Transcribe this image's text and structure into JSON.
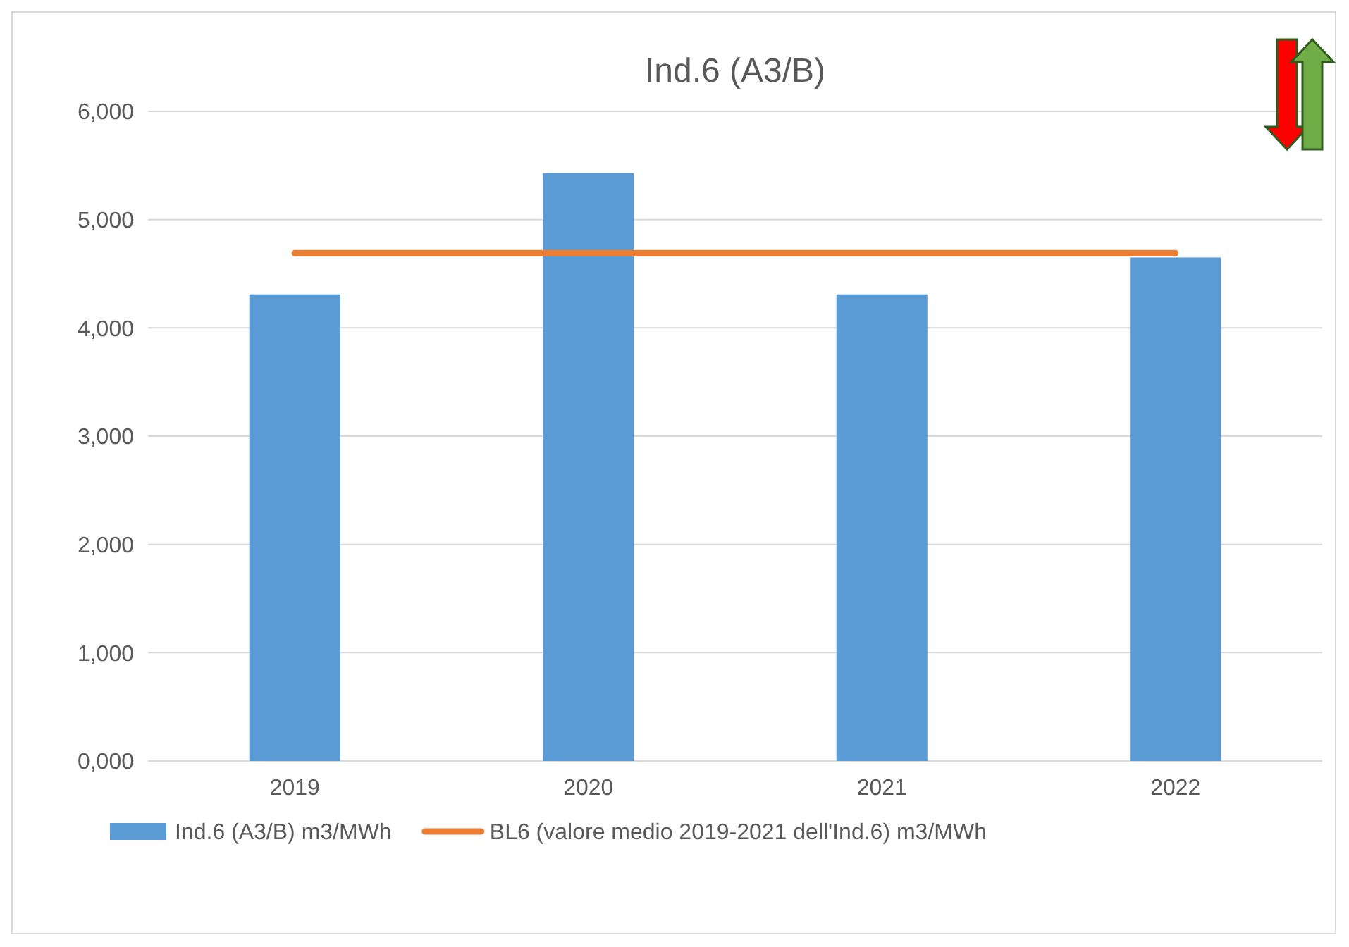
{
  "chart_data": {
    "type": "bar",
    "title": "Ind.6 (A3/B)",
    "categories": [
      "2019",
      "2020",
      "2021",
      "2022"
    ],
    "series": [
      {
        "name": "Ind.6 (A3/B) m3/MWh",
        "color": "#5b9bd5",
        "values": [
          4310,
          5430,
          4310,
          4650
        ]
      },
      {
        "name": "BL6 (valore medio 2019-2021 dell'Ind.6) m3/MWh",
        "type": "line",
        "color": "#ed7d31",
        "values": [
          4690,
          4690,
          4690,
          4690
        ]
      }
    ],
    "ylim": [
      0,
      6000
    ],
    "yticks": [
      {
        "value": 0,
        "label": "0,000"
      },
      {
        "value": 1000,
        "label": "1,000"
      },
      {
        "value": 2000,
        "label": "2,000"
      },
      {
        "value": 3000,
        "label": "3,000"
      },
      {
        "value": 4000,
        "label": "4,000"
      },
      {
        "value": 5000,
        "label": "5,000"
      },
      {
        "value": 6000,
        "label": "6,000"
      }
    ],
    "grid": "y",
    "legend": "bottom"
  }
}
